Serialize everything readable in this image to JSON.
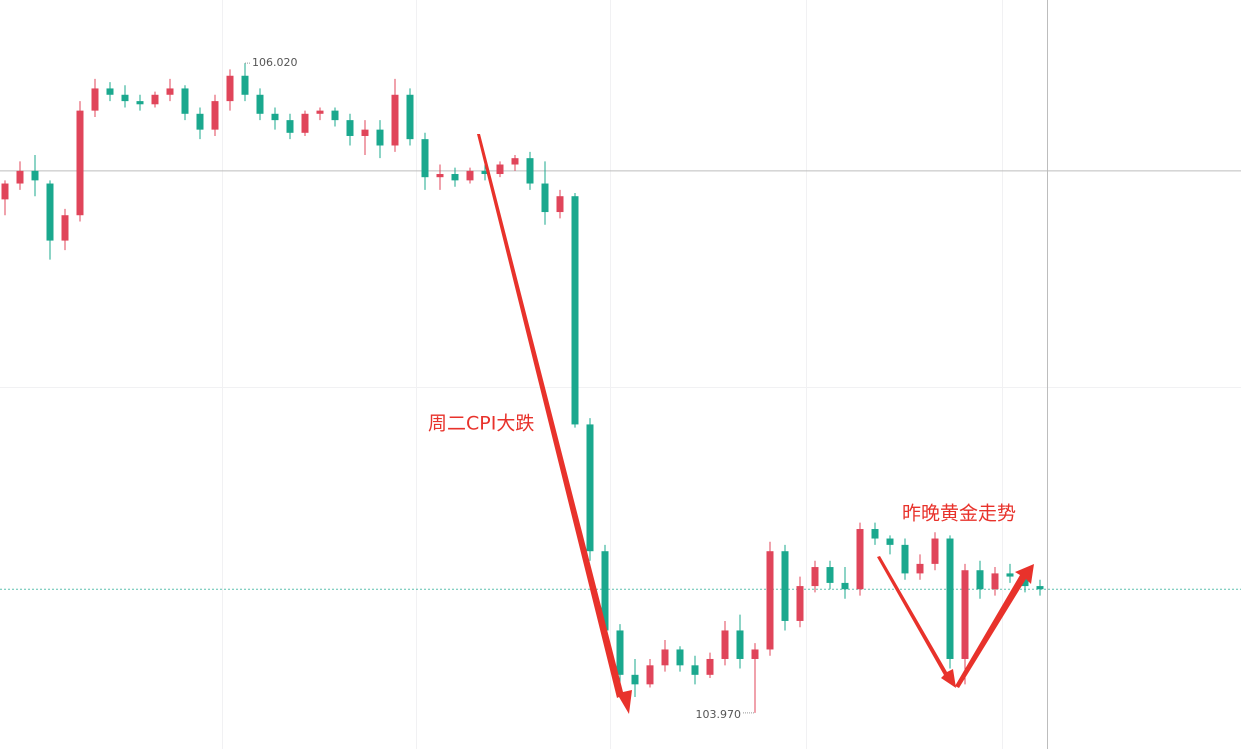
{
  "chart_data": {
    "type": "candlestick",
    "ylim": [
      103.856,
      106.219
    ],
    "up_color": "#e0455a",
    "down_color": "#1aa88e",
    "open": [
      105.59,
      105.64,
      105.68,
      105.64,
      105.46,
      105.54,
      105.87,
      105.94,
      105.92,
      105.9,
      105.89,
      105.92,
      105.94,
      105.86,
      105.81,
      105.9,
      105.98,
      105.92,
      105.86,
      105.84,
      105.8,
      105.86,
      105.87,
      105.84,
      105.79,
      105.81,
      105.76,
      105.92,
      105.78,
      105.66,
      105.67,
      105.65,
      105.68,
      105.67,
      105.7,
      105.72,
      105.64,
      105.55,
      105.6,
      104.88,
      104.48,
      104.23,
      104.09,
      104.06,
      104.12,
      104.17,
      104.12,
      104.09,
      104.14,
      104.23,
      104.14,
      104.17,
      104.48,
      104.26,
      104.37,
      104.43,
      104.38,
      104.36,
      104.55,
      104.52,
      104.5,
      104.41,
      104.44,
      104.52,
      104.14,
      104.42,
      104.36,
      104.41,
      104.4,
      104.37
    ],
    "high": [
      105.65,
      105.71,
      105.73,
      105.65,
      105.56,
      105.9,
      105.97,
      105.96,
      105.95,
      105.92,
      105.93,
      105.97,
      105.95,
      105.88,
      105.92,
      106.0,
      106.02,
      105.94,
      105.88,
      105.86,
      105.87,
      105.88,
      105.88,
      105.86,
      105.84,
      105.84,
      105.97,
      105.94,
      105.8,
      105.7,
      105.69,
      105.69,
      105.7,
      105.71,
      105.73,
      105.74,
      105.71,
      105.62,
      105.61,
      104.9,
      104.5,
      104.25,
      104.14,
      104.14,
      104.2,
      104.18,
      104.15,
      104.16,
      104.26,
      104.28,
      104.19,
      104.51,
      104.5,
      104.4,
      104.45,
      104.45,
      104.43,
      104.57,
      104.57,
      104.53,
      104.52,
      104.47,
      104.54,
      104.53,
      104.44,
      104.45,
      104.43,
      104.44,
      104.41,
      104.39
    ],
    "low": [
      105.54,
      105.62,
      105.6,
      105.4,
      105.43,
      105.52,
      105.85,
      105.9,
      105.88,
      105.87,
      105.88,
      105.9,
      105.84,
      105.78,
      105.79,
      105.87,
      105.9,
      105.84,
      105.81,
      105.78,
      105.79,
      105.84,
      105.82,
      105.76,
      105.73,
      105.72,
      105.74,
      105.76,
      105.62,
      105.62,
      105.63,
      105.64,
      105.65,
      105.66,
      105.68,
      105.62,
      105.51,
      105.53,
      104.87,
      104.45,
      104.2,
      104.06,
      104.02,
      104.05,
      104.1,
      104.1,
      104.06,
      104.08,
      104.12,
      104.11,
      103.97,
      104.15,
      104.23,
      104.24,
      104.35,
      104.36,
      104.33,
      104.34,
      104.5,
      104.47,
      104.39,
      104.39,
      104.42,
      104.11,
      104.06,
      104.33,
      104.34,
      104.38,
      104.35,
      104.34
    ],
    "close": [
      105.64,
      105.68,
      105.65,
      105.46,
      105.54,
      105.87,
      105.94,
      105.92,
      105.9,
      105.89,
      105.92,
      105.94,
      105.86,
      105.81,
      105.9,
      105.98,
      105.92,
      105.86,
      105.84,
      105.8,
      105.86,
      105.87,
      105.84,
      105.79,
      105.81,
      105.76,
      105.92,
      105.78,
      105.66,
      105.67,
      105.65,
      105.68,
      105.67,
      105.7,
      105.72,
      105.64,
      105.55,
      105.6,
      104.88,
      104.48,
      104.23,
      104.09,
      104.06,
      104.12,
      104.17,
      104.12,
      104.09,
      104.14,
      104.23,
      104.14,
      104.17,
      104.48,
      104.26,
      104.37,
      104.43,
      104.38,
      104.36,
      104.55,
      104.52,
      104.5,
      104.41,
      104.44,
      104.52,
      104.14,
      104.42,
      104.36,
      104.41,
      104.4,
      104.37,
      104.36
    ],
    "high_label": "106.020",
    "low_label": "103.970",
    "crosshair_price": 105.68,
    "last_price": 104.36,
    "annotations": [
      "周二CPI大跌",
      "昨晚黄金走势"
    ]
  }
}
